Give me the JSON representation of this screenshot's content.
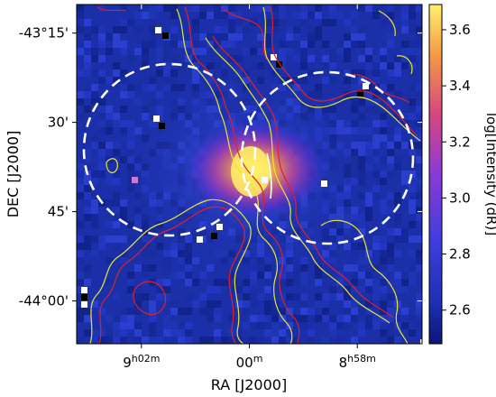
{
  "chart_data": {
    "type": "heatmap",
    "title": "",
    "xlabel": "RA [J2000]",
    "ylabel": "DEC [J2000]",
    "x_ticks": [
      {
        "label_main": "9",
        "label_sup": "h02m",
        "value_deg": 135.5
      },
      {
        "label_main": "00",
        "label_sup": "m",
        "value_deg": 135.0
      },
      {
        "label_main": "8",
        "label_sup": "h58m",
        "value_deg": 134.5
      }
    ],
    "y_ticks": [
      {
        "label": "-43°15'",
        "value_deg": -43.25
      },
      {
        "label": "30'",
        "value_deg": -43.5
      },
      {
        "label": "45'",
        "value_deg": -43.75
      },
      {
        "label": "-44°00'",
        "value_deg": -44.0
      }
    ],
    "xlim_deg": [
      135.8,
      134.2
    ],
    "ylim_deg": [
      -44.12,
      -43.17
    ],
    "colorbar": {
      "label": "log[Intensity (dR)]",
      "ticks": [
        "3.6",
        "3.4",
        "3.2",
        "3.0",
        "2.8",
        "2.6"
      ],
      "tick_values": [
        3.6,
        3.4,
        3.2,
        3.0,
        2.8,
        2.6
      ],
      "range": [
        2.48,
        3.69
      ],
      "colormap": "plasma-like (dark blue → purple → orange → yellow)"
    },
    "peak_emission": {
      "ra_deg": 135.0,
      "dec_deg": -43.62,
      "log_intensity": 3.65
    },
    "contours": [
      {
        "name": "",
        "color": "#e8e830"
      },
      {
        "name": "",
        "color": "#e0202a"
      }
    ],
    "dashed_circles": [
      {
        "center_ra_deg": 135.46,
        "center_dec_deg": -43.56,
        "radius_deg": 0.28,
        "color": "#ffffff"
      },
      {
        "center_ra_deg": 134.58,
        "center_dec_deg": -43.6,
        "radius_deg": 0.28,
        "color": "#ffffff"
      }
    ],
    "grid": false,
    "legend": "none"
  },
  "colors": {
    "background_map": "#1a2fa8",
    "contour_yellow": "#e8e830",
    "contour_red": "#e0202a",
    "circle": "#ffffff"
  }
}
